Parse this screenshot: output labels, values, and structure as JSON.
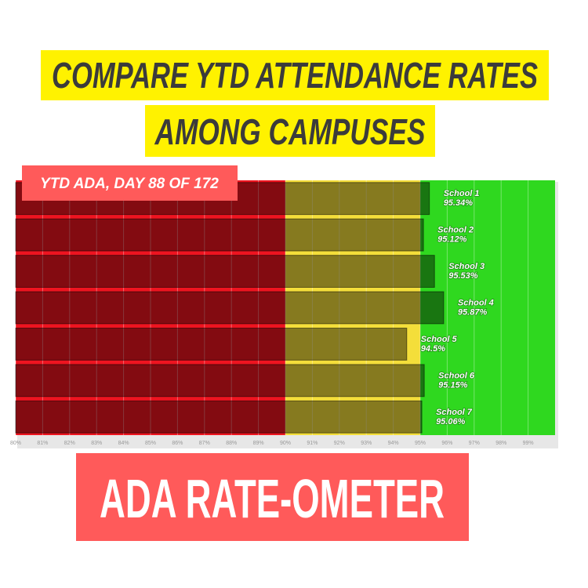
{
  "chart_data": {
    "type": "bar",
    "orientation": "horizontal",
    "title": [
      "COMPARE YTD ATTENDANCE RATES",
      "AMONG CAMPUSES"
    ],
    "subtitle": "YTD ADA, DAY 88 OF 172",
    "footer": "ADA RATE-OMETER",
    "categories": [
      "School 1",
      "School 2",
      "School 3",
      "School 4",
      "School 5",
      "School 6",
      "School 7"
    ],
    "values": [
      95.34,
      95.12,
      95.53,
      95.87,
      94.5,
      95.15,
      95.06
    ],
    "value_labels": [
      "95.34%",
      "95.12%",
      "95.53%",
      "95.87%",
      "94.5%",
      "95.15%",
      "95.06%"
    ],
    "bar_color": "#000000",
    "zones": [
      {
        "from": 80,
        "to": 90,
        "color": "#ee1420"
      },
      {
        "from": 90,
        "to": 95,
        "color": "#f4de3a"
      },
      {
        "from": 95,
        "to": 100,
        "color": "#2fd81f"
      }
    ],
    "xlim": [
      80,
      100
    ],
    "xticks": [
      {
        "value": 80,
        "label": "80%"
      },
      {
        "value": 81,
        "label": "81%"
      },
      {
        "value": 82,
        "label": "82%"
      },
      {
        "value": 83,
        "label": "83%"
      },
      {
        "value": 84,
        "label": "84%"
      },
      {
        "value": 85,
        "label": "85%"
      },
      {
        "value": 86,
        "label": "86%"
      },
      {
        "value": 87,
        "label": "87%"
      },
      {
        "value": 88,
        "label": "88%"
      },
      {
        "value": 89,
        "label": "89%"
      },
      {
        "value": 90,
        "label": "90%"
      },
      {
        "value": 91,
        "label": "91%"
      },
      {
        "value": 92,
        "label": "92%"
      },
      {
        "value": 93,
        "label": "93%"
      },
      {
        "value": 94,
        "label": "94%"
      },
      {
        "value": 95,
        "label": "95%"
      },
      {
        "value": 96,
        "label": "96%"
      },
      {
        "value": 97,
        "label": "97%"
      },
      {
        "value": 98,
        "label": "98%"
      },
      {
        "value": 99,
        "label": "99%"
      }
    ],
    "grid": true
  }
}
